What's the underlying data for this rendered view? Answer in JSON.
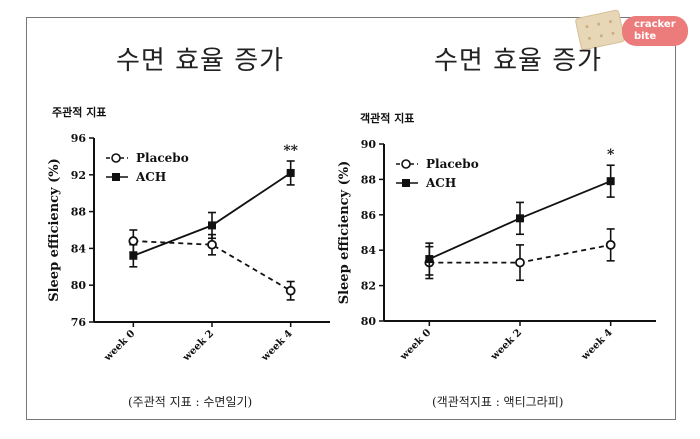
{
  "logo": {
    "line1": "cracker",
    "line2": "bite"
  },
  "charts": [
    {
      "title": "수면 효율 증가",
      "subtitle": "주관적 지표",
      "caption": "(주관적 지표 : 수면일기)"
    },
    {
      "title": "수면 효율 증가",
      "subtitle": "객관적 지표",
      "caption": "(객관적지표 : 액티그라피)"
    }
  ],
  "chart_data": [
    {
      "type": "line",
      "ylabel": "Sleep efficiency (%)",
      "categories": [
        "week 0",
        "week 2",
        "week 4"
      ],
      "ylim": [
        76,
        96
      ],
      "yticks": [
        "76",
        "80",
        "84",
        "88",
        "92",
        "96"
      ],
      "legend_position": "top-left",
      "series": [
        {
          "name": "Placebo",
          "values": [
            84.8,
            84.4,
            79.4
          ],
          "errors": [
            1.2,
            1.1,
            1.0
          ],
          "style": "dashed",
          "marker": "circle"
        },
        {
          "name": "ACH",
          "values": [
            83.2,
            86.5,
            92.2
          ],
          "errors": [
            1.2,
            1.4,
            1.3
          ],
          "style": "solid",
          "marker": "square"
        }
      ],
      "annotations": [
        {
          "category": "week 4",
          "text": "**"
        }
      ]
    },
    {
      "type": "line",
      "ylabel": "Sleep efficiency (%)",
      "categories": [
        "week 0",
        "week 2",
        "week 4"
      ],
      "ylim": [
        80,
        90
      ],
      "yticks": [
        "80",
        "82",
        "84",
        "86",
        "88",
        "90"
      ],
      "legend_position": "top-left",
      "series": [
        {
          "name": "Placebo",
          "values": [
            83.3,
            83.3,
            84.3
          ],
          "errors": [
            0.9,
            1.0,
            0.9
          ],
          "style": "dashed",
          "marker": "circle"
        },
        {
          "name": "ACH",
          "values": [
            83.5,
            85.8,
            87.9
          ],
          "errors": [
            0.9,
            0.9,
            0.9
          ],
          "style": "solid",
          "marker": "square"
        }
      ],
      "annotations": [
        {
          "category": "week 4",
          "text": "*"
        }
      ]
    }
  ]
}
